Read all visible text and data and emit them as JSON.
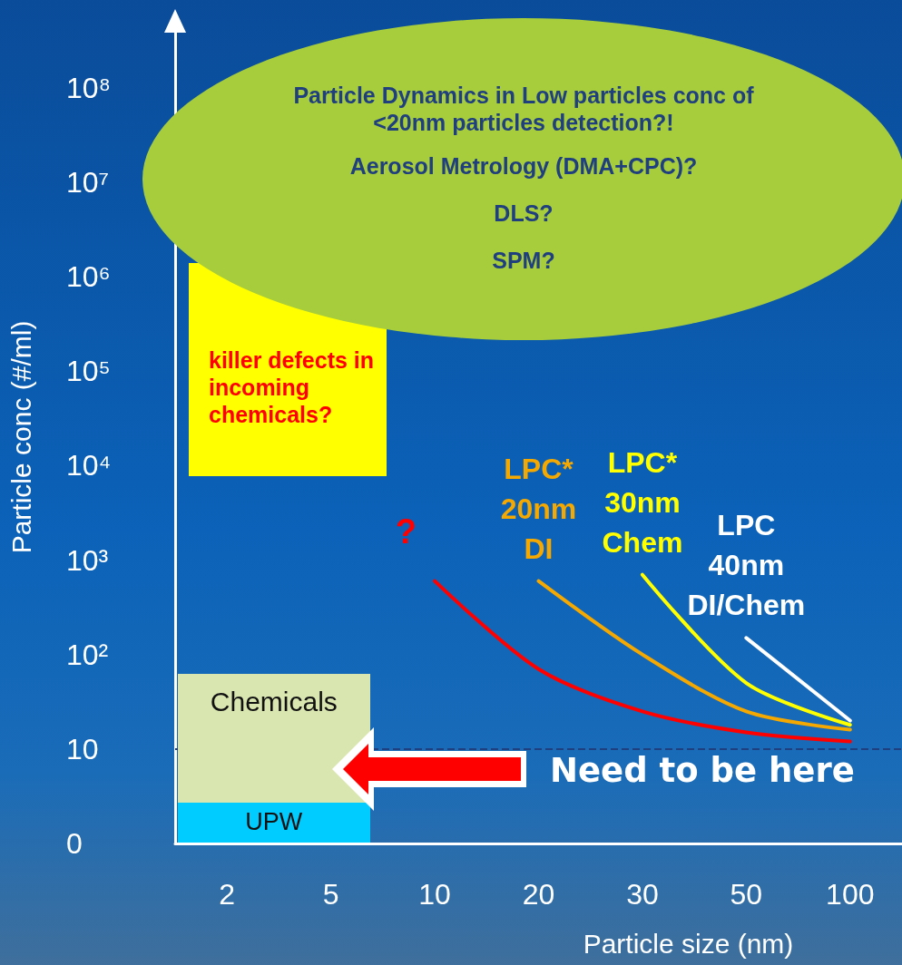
{
  "chart_data": {
    "type": "line",
    "xlabel": "Particle size (nm)",
    "ylabel": "Particle conc (#/ml)",
    "categories": [
      "2",
      "5",
      "10",
      "20",
      "30",
      "50",
      "100"
    ],
    "series": [
      {
        "name": "?",
        "color": "#ff0000",
        "values": [
          null,
          null,
          600,
          70,
          25,
          15,
          12
        ]
      },
      {
        "name": "LPC* 20nm DI",
        "color": "#f5a800",
        "values": [
          null,
          null,
          null,
          600,
          100,
          25,
          16
        ]
      },
      {
        "name": "LPC* 30nm Chem",
        "color": "#ffff00",
        "values": [
          null,
          null,
          null,
          null,
          700,
          50,
          18
        ]
      },
      {
        "name": "LPC 40nm DI/Chem",
        "color": "#ffffff",
        "values": [
          null,
          null,
          null,
          null,
          null,
          150,
          20
        ]
      }
    ],
    "log": "y",
    "ylim": [
      0,
      400000000
    ],
    "yticks": [
      0,
      10,
      {
        "value": 100,
        "label": "10²"
      },
      {
        "value": 1000,
        "label": "10³"
      },
      {
        "value": 10000,
        "label": "10⁴"
      },
      {
        "value": 100000,
        "label": "10⁵"
      },
      {
        "value": 1000000,
        "label": "10⁶"
      },
      {
        "value": 10000000,
        "label": "10⁷"
      },
      {
        "value": 100000000,
        "label": "10⁸"
      }
    ],
    "ref_lines": [
      {
        "axis": "y",
        "value": 10,
        "color": "#1f3f7f",
        "line_style": "dashed"
      }
    ],
    "annotations": [
      "Particle Dynamics in Low particles conc of <20nm particles detection?!",
      "Aerosol Metrology (DMA+CPC)?",
      "DLS?",
      "SPM?",
      "killer defects in incoming chemicals?",
      "Chemicals",
      "UPW",
      "Need to be here"
    ],
    "marker": "none",
    "line_style": "solid",
    "legend": false,
    "grid": false
  }
}
